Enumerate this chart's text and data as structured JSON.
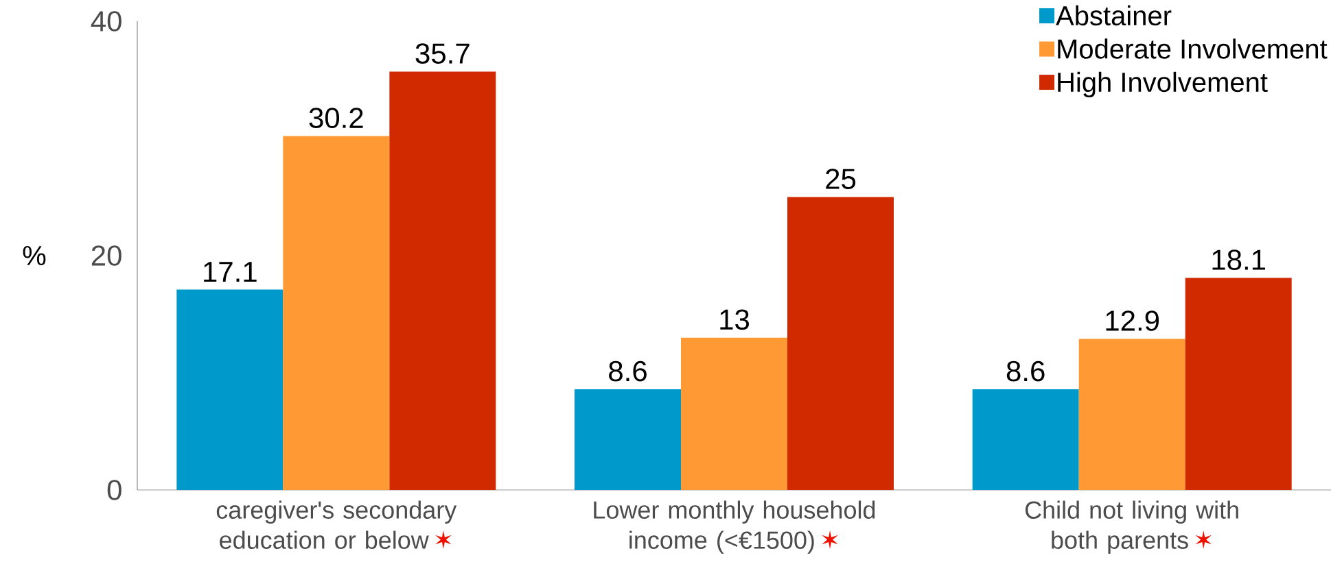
{
  "chart_data": {
    "type": "bar",
    "ylabel": "%",
    "categories": [
      "caregiver's secondary education or below",
      "Lower monthly household income (<€1500)",
      "Child not living with both parents"
    ],
    "series": [
      {
        "name": "Abstainer",
        "color": "#0099cc",
        "values": [
          17.1,
          8.6,
          8.6
        ]
      },
      {
        "name": "Moderate Involvement",
        "color": "#ff9933",
        "values": [
          30.2,
          13,
          12.9
        ]
      },
      {
        "name": "High Involvement",
        "color": "#d22a00",
        "values": [
          35.7,
          25,
          18.1
        ]
      }
    ],
    "ylim": [
      0,
      40
    ],
    "yticks": [
      0,
      20,
      40
    ],
    "data_labels": true,
    "legend": "top right",
    "annotations": [
      "✶",
      "✶",
      "✶"
    ]
  }
}
